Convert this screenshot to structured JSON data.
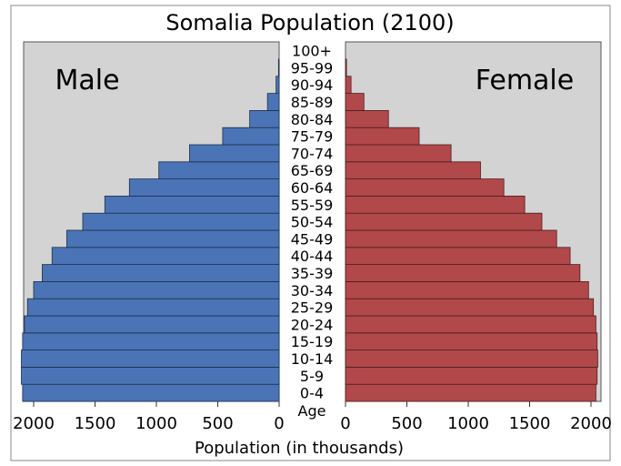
{
  "chart_data": {
    "type": "bar",
    "title": "Somalia Population (2100)",
    "xlabel": "Population (in thousands)",
    "age_label": "Age",
    "left_label": "Male",
    "right_label": "Female",
    "xlim": [
      0,
      2100
    ],
    "x_ticks": [
      2000,
      1500,
      1000,
      500,
      0
    ],
    "x_ticks_right": [
      0,
      500,
      1000,
      1500,
      2000
    ],
    "categories": [
      "0-4",
      "5-9",
      "10-14",
      "15-19",
      "20-24",
      "25-29",
      "30-34",
      "35-39",
      "40-44",
      "45-49",
      "50-54",
      "55-59",
      "60-64",
      "65-69",
      "70-74",
      "75-79",
      "80-84",
      "85-89",
      "90-94",
      "95-99",
      "100+"
    ],
    "series": [
      {
        "name": "Male",
        "color": "#4a74b5",
        "values": [
          2090,
          2100,
          2100,
          2090,
          2075,
          2050,
          2000,
          1930,
          1850,
          1730,
          1600,
          1420,
          1220,
          980,
          730,
          460,
          240,
          95,
          25,
          5,
          0
        ]
      },
      {
        "name": "Female",
        "color": "#b1484a",
        "values": [
          2040,
          2050,
          2055,
          2050,
          2040,
          2020,
          1980,
          1910,
          1830,
          1720,
          1600,
          1460,
          1290,
          1100,
          860,
          600,
          350,
          150,
          45,
          8,
          0
        ]
      }
    ],
    "grid": false,
    "background_color": "#d3d3d3"
  }
}
